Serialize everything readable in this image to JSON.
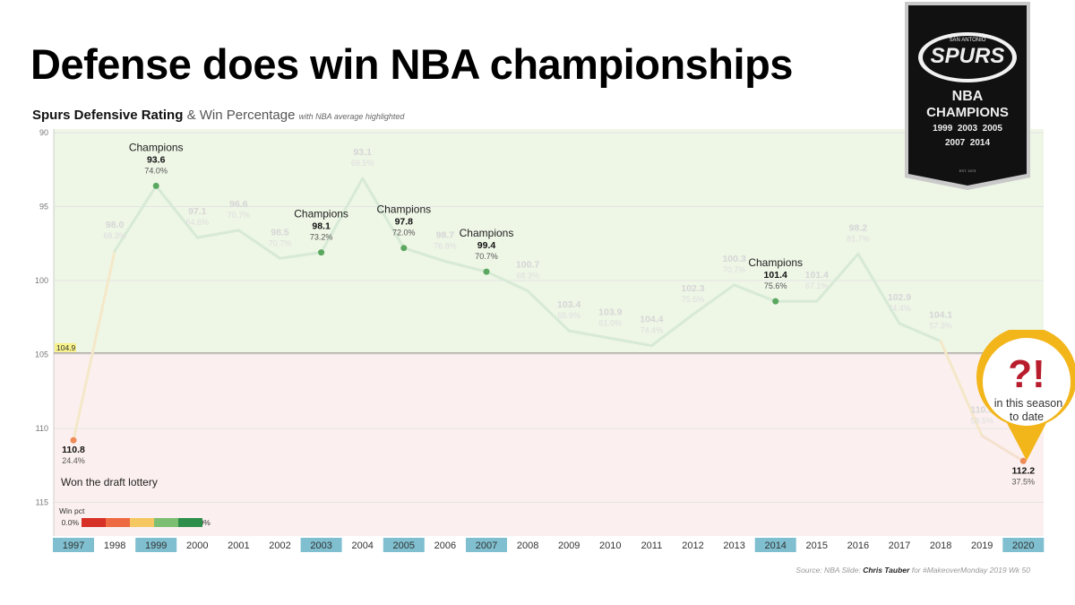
{
  "title": "Defense does win NBA championships",
  "subtitle": {
    "main": "Spurs Defensive Rating",
    "rest": "& Win Percentage",
    "small": "with NBA average highlighted"
  },
  "chart_data": {
    "type": "line",
    "title": "Spurs Defensive Rating & Win Percentage",
    "ylim": [
      90,
      116.5
    ],
    "y_reversed": true,
    "yticks": [
      90,
      95,
      100,
      105,
      110,
      115
    ],
    "nba_average": 104.9,
    "nba_average_label": "104.9",
    "x": [
      "1997",
      "1998",
      "1999",
      "2000",
      "2001",
      "2002",
      "2003",
      "2004",
      "2005",
      "2006",
      "2007",
      "2008",
      "2009",
      "2010",
      "2011",
      "2012",
      "2013",
      "2014",
      "2015",
      "2016",
      "2017",
      "2018",
      "2019",
      "2020"
    ],
    "series": [
      {
        "name": "Defensive Rating",
        "values": [
          110.8,
          98.0,
          93.6,
          97.1,
          96.6,
          98.5,
          98.1,
          93.1,
          97.8,
          98.7,
          99.4,
          100.7,
          103.4,
          103.9,
          104.4,
          102.3,
          100.3,
          101.4,
          101.4,
          98.2,
          102.9,
          104.1,
          110.5,
          112.2
        ]
      },
      {
        "name": "Win pct",
        "values": [
          "24.4%",
          "68.3%",
          "74.0%",
          "64.6%",
          "70.7%",
          "70.7%",
          "73.2%",
          "69.5%",
          "72.0%",
          "76.8%",
          "70.7%",
          "68.3%",
          "65.9%",
          "61.0%",
          "74.4%",
          "75.6%",
          "70.7%",
          "75.6%",
          "67.1%",
          "81.7%",
          "74.4%",
          "57.3%",
          "58.5%",
          "37.5%"
        ]
      }
    ],
    "highlight_years": [
      "1997",
      "1999",
      "2003",
      "2005",
      "2007",
      "2014",
      "2020"
    ],
    "annotations": {
      "champions": "Champions",
      "lottery": "Won the draft lottery"
    },
    "legend": {
      "title": "Win pct",
      "min": "0.0%",
      "max": "100.0%",
      "colors": [
        "#d73027",
        "#ee6a42",
        "#f4c760",
        "#7cbf72",
        "#2e8f4a"
      ]
    },
    "colors": {
      "green_zone": "#eef6e6",
      "red_zone": "#fbefef",
      "line": "#d7ead6",
      "dot_green": "#5aa85f",
      "dot_orange": "#ed8a55",
      "year_highlight": "#7fbfcf"
    }
  },
  "banner": {
    "team": "SPURS",
    "top_text": "SAN ANTONIO",
    "line1": "NBA",
    "line2": "CHAMPIONS",
    "years1": "1999  2003  2005",
    "years2": "2007  2014",
    "est": "EST. 1973"
  },
  "callout": {
    "mark": "?!",
    "line1": "in this season",
    "line2": "to date"
  },
  "source": {
    "prefix": "Source: NBA   Slide: ",
    "author": "Chris Tauber",
    "suffix": " for #MakeoverMonday 2019 Wk 50"
  }
}
